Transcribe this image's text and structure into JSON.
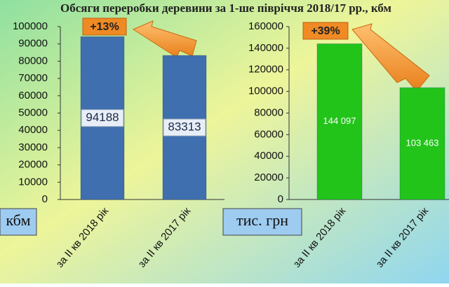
{
  "title": "Обсяги переробки деревини за 1-ше півріччя 2018/17 рр., кбм",
  "chart_data": [
    {
      "type": "bar",
      "categories": [
        "за ІІ кв 2018 рік",
        "за ІІ кв 2017 рік"
      ],
      "values": [
        94188,
        83313
      ],
      "color": "#3f6fae",
      "ylim": [
        0,
        100000
      ],
      "yticks": [
        0,
        10000,
        20000,
        30000,
        40000,
        50000,
        60000,
        70000,
        80000,
        90000,
        100000
      ],
      "annotation": "+13%",
      "unit_label": "кбм"
    },
    {
      "type": "bar",
      "categories": [
        "за ІІ кв 2018 рік",
        "за ІІ кв 2017 рік"
      ],
      "values": [
        144097,
        103463
      ],
      "value_labels": [
        "144 097",
        "103 463"
      ],
      "color": "#22c41a",
      "ylim": [
        0,
        160000
      ],
      "yticks": [
        0,
        20000,
        40000,
        60000,
        80000,
        100000,
        120000,
        140000,
        160000
      ],
      "annotation": "+39%",
      "unit_label": "тис. грн"
    }
  ]
}
